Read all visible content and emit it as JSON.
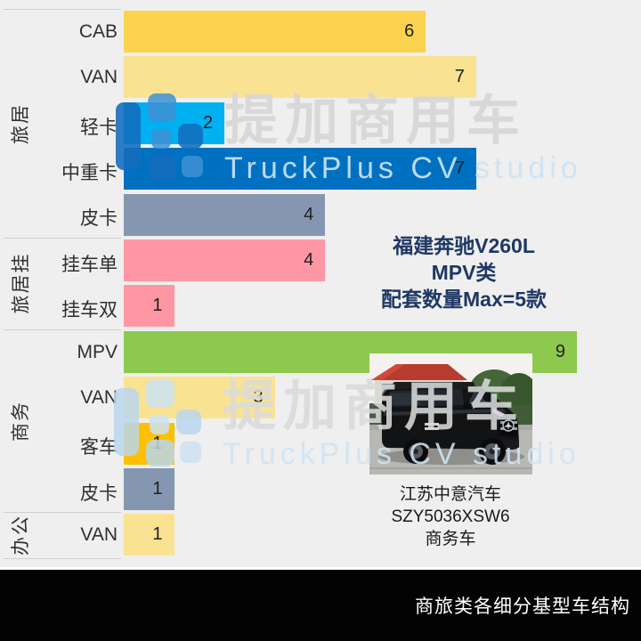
{
  "chart_data": {
    "type": "bar",
    "orientation": "horizontal",
    "value_axis_max_shown": 9,
    "grid": false,
    "legend": "none",
    "groups": [
      {
        "label": "旅居",
        "items": [
          {
            "label": "CAB",
            "value": 6,
            "color": "#FBD34F"
          },
          {
            "label": "VAN",
            "value": 7,
            "color": "#F9E292"
          },
          {
            "label": "轻卡",
            "value": 2,
            "color": "#00B0F0"
          },
          {
            "label": "中重卡",
            "value": 7,
            "color": "#0070C0"
          },
          {
            "label": "皮卡",
            "value": 4,
            "color": "#8496B0"
          }
        ]
      },
      {
        "label": "旅居挂",
        "items": [
          {
            "label": "挂车单",
            "value": 4,
            "color": "#FF96A4"
          },
          {
            "label": "挂车双",
            "value": 1,
            "color": "#FF96A4"
          }
        ]
      },
      {
        "label": "商务",
        "items": [
          {
            "label": "MPV",
            "value": 9,
            "color": "#8CC94E"
          },
          {
            "label": "VAN",
            "value": 3,
            "color": "#F9E292"
          },
          {
            "label": "客车",
            "value": 1,
            "color": "#FFC000"
          },
          {
            "label": "皮卡",
            "value": 1,
            "color": "#8496B0"
          }
        ]
      },
      {
        "label": "办公",
        "items": [
          {
            "label": "VAN",
            "value": 1,
            "color": "#F9E292"
          }
        ]
      }
    ]
  },
  "annotation": {
    "lines": [
      "福建奔驰V260L",
      "MPV类",
      "配套数量Max=5款"
    ],
    "color": "#1F3864"
  },
  "vehicle": {
    "caption_lines": [
      "江苏中意汽车",
      "SZY5036XSW6",
      "商务车"
    ]
  },
  "watermark": {
    "cn": "提加商用车",
    "en": "TruckPlus CV studio"
  },
  "footer": {
    "title": "商旅类各细分基型车结构"
  },
  "colors": {
    "chart_background": "#efefef",
    "footer_background": "#030303",
    "divider": "#cfcfcf",
    "annotation_text": "#1F3864",
    "watermark_blue": "#126CBC"
  }
}
